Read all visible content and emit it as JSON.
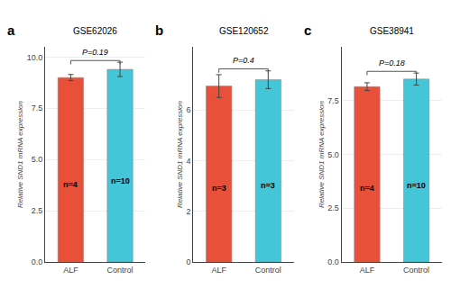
{
  "chart_data": [
    {
      "type": "bar",
      "title": "GSE62026",
      "panel_label": "a",
      "pvalue": "P=0.19",
      "ylabel": "Relative SND1 mRNA expression",
      "categories": [
        "ALF",
        "Control"
      ],
      "values": [
        9.0,
        9.4
      ],
      "errors": [
        0.15,
        0.35
      ],
      "n_labels": [
        "n=4",
        "n=10"
      ],
      "colors": [
        "#E8503A",
        "#45C5D8"
      ],
      "ylim": [
        0,
        10.5
      ],
      "yticks": [
        {
          "value": 0,
          "label": "0.0"
        },
        2.5,
        {
          "value": 5,
          "label": "5.0"
        },
        7.5,
        {
          "value": 10,
          "label": "10.0"
        }
      ],
      "grid": true
    },
    {
      "type": "bar",
      "title": "GSE120652",
      "panel_label": "b",
      "pvalue": "P=0.4",
      "ylabel": "Relative SND1 mRNA expression",
      "categories": [
        "ALF",
        "Control"
      ],
      "values": [
        6.95,
        7.2
      ],
      "errors": [
        0.45,
        0.35
      ],
      "n_labels": [
        "n=3",
        "n=3"
      ],
      "colors": [
        "#E8503A",
        "#45C5D8"
      ],
      "ylim": [
        0,
        8.5
      ],
      "yticks": [
        0,
        2,
        4,
        6
      ],
      "grid": true
    },
    {
      "type": "bar",
      "title": "GSE38941",
      "panel_label": "c",
      "pvalue": "P=0.18",
      "ylabel": "Relative SND1 mRNA expression",
      "categories": [
        "ALF",
        "Control"
      ],
      "values": [
        8.15,
        8.5
      ],
      "errors": [
        0.18,
        0.28
      ],
      "n_labels": [
        "n=4",
        "n=10"
      ],
      "colors": [
        "#E8503A",
        "#45C5D8"
      ],
      "ylim": [
        0,
        10.0
      ],
      "yticks": [
        {
          "value": 0,
          "label": "0.0"
        },
        2.5,
        {
          "value": 5,
          "label": "5.0"
        },
        7.5
      ],
      "grid": true
    }
  ]
}
